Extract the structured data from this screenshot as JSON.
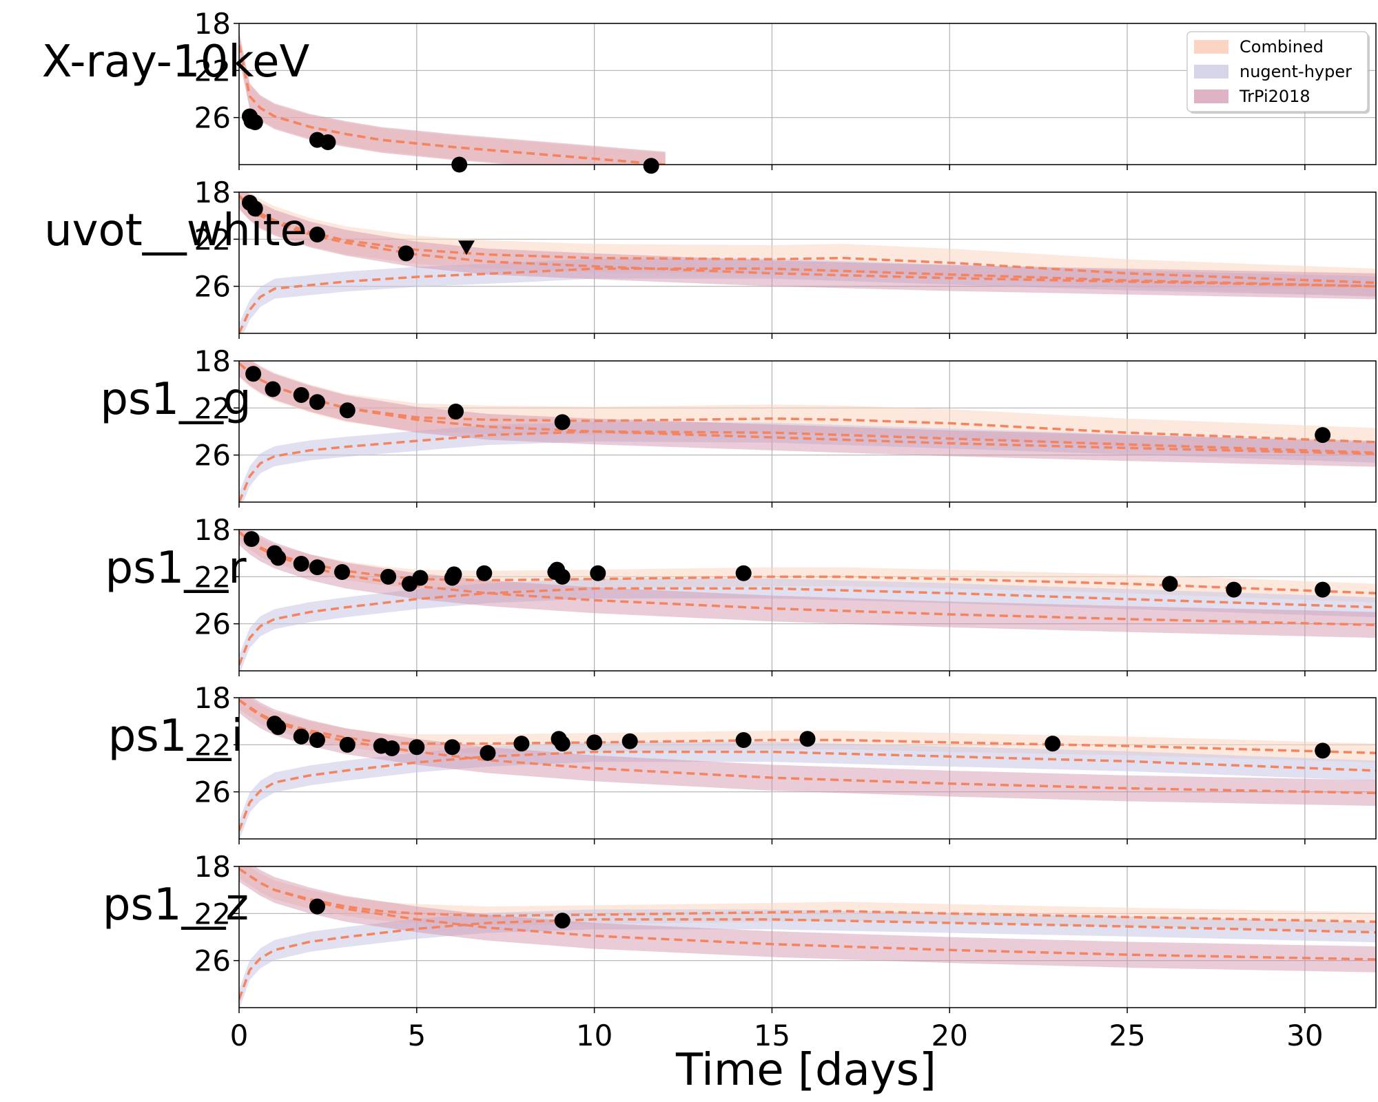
{
  "figure": {
    "xlabel": "Time [days]",
    "xlim": [
      0,
      32
    ],
    "xticks": [
      0,
      5,
      10,
      15,
      20,
      25,
      30
    ],
    "xtick_labels": [
      "0",
      "5",
      "10",
      "15",
      "20",
      "25",
      "30"
    ],
    "grid": true
  },
  "legend": {
    "placement": "top-right",
    "entries": [
      {
        "label": "Combined",
        "color": "#fcd5c2"
      },
      {
        "label": "nugent-hyper",
        "color": "#d6d5ea"
      },
      {
        "label": "TrPi2018",
        "color": "#deb3c5"
      }
    ]
  },
  "colors": {
    "model_line": "#f4845f",
    "combined_band": "#fcd5c2",
    "nugent_band": "#c9c7e6",
    "trpi_band": "#d08ea9",
    "data_point": "#000000",
    "grid": "#b0b0b0"
  },
  "chart_data": [
    {
      "type": "line",
      "title": "X-ray-10keV",
      "ylabel": "X-ray-10keV",
      "ylim": [
        30,
        18
      ],
      "yticks": [
        18,
        22,
        26
      ],
      "ytick_labels": [
        "18",
        "22",
        "26"
      ],
      "series": [
        {
          "name": "TrPi2018",
          "band": "trpi",
          "x": [
            0,
            0.3,
            0.6,
            1,
            2,
            3,
            4,
            6,
            8,
            10,
            12
          ],
          "y": [
            19.8,
            24.2,
            25.2,
            25.9,
            26.8,
            27.4,
            27.9,
            28.5,
            29.0,
            29.5,
            30.0
          ],
          "width": 2.2
        },
        {
          "name": "Combined",
          "band": "combined",
          "x": [
            0,
            0.3,
            0.6,
            1,
            2,
            3,
            4,
            6,
            8,
            10,
            12
          ],
          "y": [
            19.8,
            24.2,
            25.2,
            25.9,
            26.8,
            27.4,
            27.9,
            28.5,
            29.0,
            29.5,
            30.0
          ],
          "width": 2.0
        }
      ],
      "points": [
        {
          "x": 0.3,
          "y": 25.9
        },
        {
          "x": 0.35,
          "y": 26.3
        },
        {
          "x": 0.45,
          "y": 26.4
        },
        {
          "x": 2.2,
          "y": 27.9
        },
        {
          "x": 2.5,
          "y": 28.1
        },
        {
          "x": 6.2,
          "y": 30.0
        },
        {
          "x": 11.6,
          "y": 30.1
        }
      ],
      "upper_limits": []
    },
    {
      "type": "line",
      "title": "uvot__white",
      "ylabel": "uvot__white",
      "ylim": [
        30,
        18
      ],
      "yticks": [
        18,
        22,
        26
      ],
      "ytick_labels": [
        "18",
        "22",
        "26"
      ],
      "series": [
        {
          "name": "nugent-hyper",
          "band": "nugent",
          "x": [
            0,
            0.3,
            0.6,
            1,
            2,
            3,
            5,
            8,
            10,
            15,
            20,
            25,
            32
          ],
          "y": [
            30,
            28.0,
            26.9,
            26.2,
            25.9,
            25.6,
            25.2,
            24.8,
            24.5,
            24.5,
            25.0,
            25.5,
            26.0
          ],
          "width": 1.7
        },
        {
          "name": "TrPi2018",
          "band": "trpi",
          "x": [
            0,
            0.3,
            0.6,
            1,
            2,
            3,
            5,
            7,
            10,
            15,
            20,
            25,
            32
          ],
          "y": [
            18.3,
            19.3,
            20.0,
            20.6,
            21.6,
            22.3,
            23.3,
            23.9,
            24.3,
            24.9,
            25.3,
            25.6,
            26.0
          ],
          "width": 2.2
        },
        {
          "name": "Combined",
          "band": "combined",
          "x": [
            0,
            0.3,
            0.6,
            1,
            2,
            3,
            5,
            7,
            10,
            15,
            17,
            20,
            25,
            32
          ],
          "y": [
            18.3,
            19.2,
            19.8,
            20.4,
            21.4,
            22.1,
            22.9,
            23.3,
            23.6,
            23.7,
            23.6,
            24.0,
            24.9,
            25.7
          ],
          "width": 2.4
        }
      ],
      "points": [
        {
          "x": 0.3,
          "y": 18.9
        },
        {
          "x": 0.45,
          "y": 19.4
        },
        {
          "x": 2.2,
          "y": 21.6
        },
        {
          "x": 4.7,
          "y": 23.2,
          "err": 0.9
        }
      ],
      "upper_limits": [
        {
          "x": 6.4,
          "y": 22.7
        }
      ]
    },
    {
      "type": "line",
      "title": "ps1__g",
      "ylabel": "ps1__g",
      "ylim": [
        30,
        18
      ],
      "yticks": [
        18,
        22,
        26
      ],
      "ytick_labels": [
        "18",
        "22",
        "26"
      ],
      "series": [
        {
          "name": "nugent-hyper",
          "band": "nugent",
          "x": [
            0,
            0.3,
            0.6,
            1,
            2,
            3,
            5,
            7,
            10,
            15,
            20,
            25,
            32
          ],
          "y": [
            30,
            27.8,
            26.7,
            26.1,
            25.6,
            25.3,
            24.8,
            24.3,
            24.0,
            24.1,
            24.6,
            25.1,
            25.8
          ],
          "width": 1.7
        },
        {
          "name": "TrPi2018",
          "band": "trpi",
          "x": [
            0,
            0.3,
            0.6,
            1,
            2,
            3,
            5,
            7,
            10,
            15,
            20,
            25,
            32
          ],
          "y": [
            18.2,
            19.0,
            19.6,
            20.2,
            21.2,
            22.0,
            23.0,
            23.6,
            24.0,
            24.5,
            25.0,
            25.4,
            25.9
          ],
          "width": 2.2
        },
        {
          "name": "Combined",
          "band": "combined",
          "x": [
            0,
            0.3,
            0.6,
            1,
            2,
            3,
            5,
            7,
            10,
            15,
            17,
            20,
            25,
            32
          ],
          "y": [
            18.2,
            19.0,
            19.6,
            20.2,
            21.2,
            22.0,
            22.8,
            23.0,
            23.1,
            22.9,
            23.0,
            23.3,
            24.1,
            24.9
          ],
          "width": 2.4
        }
      ],
      "points": [
        {
          "x": 0.4,
          "y": 19.1
        },
        {
          "x": 0.95,
          "y": 20.4
        },
        {
          "x": 1.75,
          "y": 20.9
        },
        {
          "x": 2.2,
          "y": 21.5
        },
        {
          "x": 3.05,
          "y": 22.2
        },
        {
          "x": 6.1,
          "y": 22.3
        },
        {
          "x": 9.1,
          "y": 23.2
        },
        {
          "x": 30.5,
          "y": 24.3
        }
      ],
      "upper_limits": []
    },
    {
      "type": "line",
      "title": "ps1__r",
      "ylabel": "ps1__r",
      "ylim": [
        30,
        18
      ],
      "yticks": [
        18,
        22,
        26
      ],
      "ytick_labels": [
        "18",
        "22",
        "26"
      ],
      "series": [
        {
          "name": "nugent-hyper",
          "band": "nugent",
          "x": [
            0,
            0.3,
            0.6,
            1,
            2,
            3,
            5,
            7,
            10,
            15,
            20,
            25,
            32
          ],
          "y": [
            29.5,
            27.2,
            26.2,
            25.6,
            25.0,
            24.6,
            23.9,
            23.4,
            23.0,
            23.0,
            23.4,
            23.9,
            24.6
          ],
          "width": 1.7
        },
        {
          "name": "TrPi2018",
          "band": "trpi",
          "x": [
            0,
            0.3,
            0.6,
            1,
            2,
            3,
            5,
            7,
            10,
            15,
            20,
            25,
            32
          ],
          "y": [
            18.2,
            19.0,
            19.6,
            20.2,
            21.2,
            21.9,
            22.8,
            23.4,
            24.0,
            24.7,
            25.2,
            25.6,
            26.1
          ],
          "width": 2.2
        },
        {
          "name": "Combined",
          "band": "combined",
          "x": [
            0,
            0.3,
            0.6,
            1,
            2,
            3,
            4,
            5,
            7,
            10,
            15,
            17,
            20,
            25,
            32
          ],
          "y": [
            18.2,
            18.9,
            19.5,
            20.1,
            20.9,
            21.5,
            21.9,
            22.2,
            22.3,
            22.2,
            22.0,
            22.0,
            22.2,
            22.6,
            23.4
          ],
          "width": 1.6
        }
      ],
      "points": [
        {
          "x": 0.35,
          "y": 18.8
        },
        {
          "x": 1.0,
          "y": 20.0
        },
        {
          "x": 1.1,
          "y": 20.4
        },
        {
          "x": 1.75,
          "y": 20.9
        },
        {
          "x": 2.2,
          "y": 21.2
        },
        {
          "x": 2.9,
          "y": 21.6
        },
        {
          "x": 4.2,
          "y": 22.0
        },
        {
          "x": 4.8,
          "y": 22.6
        },
        {
          "x": 5.1,
          "y": 22.1
        },
        {
          "x": 6.0,
          "y": 22.1
        },
        {
          "x": 6.05,
          "y": 21.8
        },
        {
          "x": 6.9,
          "y": 21.7
        },
        {
          "x": 8.95,
          "y": 21.4
        },
        {
          "x": 8.9,
          "y": 21.6
        },
        {
          "x": 9.1,
          "y": 22.0
        },
        {
          "x": 10.1,
          "y": 21.7
        },
        {
          "x": 14.2,
          "y": 21.7
        },
        {
          "x": 26.2,
          "y": 22.6
        },
        {
          "x": 28.0,
          "y": 23.1
        },
        {
          "x": 30.5,
          "y": 23.1
        }
      ],
      "upper_limits": []
    },
    {
      "type": "line",
      "title": "ps1__i",
      "ylabel": "ps1__i",
      "ylim": [
        30,
        18
      ],
      "yticks": [
        18,
        22,
        26
      ],
      "ytick_labels": [
        "18",
        "22",
        "26"
      ],
      "series": [
        {
          "name": "nugent-hyper",
          "band": "nugent",
          "x": [
            0,
            0.3,
            0.6,
            1,
            2,
            3,
            5,
            7,
            10,
            15,
            20,
            25,
            32
          ],
          "y": [
            29.3,
            26.9,
            25.9,
            25.2,
            24.6,
            24.2,
            23.5,
            23.0,
            22.6,
            22.6,
            23.0,
            23.4,
            24.2
          ],
          "width": 1.7
        },
        {
          "name": "TrPi2018",
          "band": "trpi",
          "x": [
            0,
            0.3,
            0.6,
            1,
            2,
            3,
            5,
            7,
            10,
            15,
            20,
            25,
            32
          ],
          "y": [
            18.2,
            18.9,
            19.5,
            20.1,
            21.0,
            21.7,
            22.6,
            23.3,
            24.0,
            24.8,
            25.3,
            25.7,
            26.1
          ],
          "width": 2.2
        },
        {
          "name": "Combined",
          "band": "combined",
          "x": [
            0,
            0.3,
            0.6,
            1,
            2,
            3,
            4,
            5,
            7,
            10,
            15,
            17,
            20,
            25,
            32
          ],
          "y": [
            18.2,
            18.8,
            19.4,
            20.0,
            20.8,
            21.4,
            21.8,
            21.9,
            21.9,
            21.8,
            21.6,
            21.6,
            21.8,
            22.1,
            22.7
          ],
          "width": 1.6
        }
      ],
      "points": [
        {
          "x": 1.0,
          "y": 20.2
        },
        {
          "x": 1.1,
          "y": 20.5
        },
        {
          "x": 1.75,
          "y": 21.3
        },
        {
          "x": 2.2,
          "y": 21.6
        },
        {
          "x": 3.05,
          "y": 22.0
        },
        {
          "x": 4.0,
          "y": 22.1
        },
        {
          "x": 4.3,
          "y": 22.3
        },
        {
          "x": 5.0,
          "y": 22.2
        },
        {
          "x": 6.0,
          "y": 22.2
        },
        {
          "x": 7.0,
          "y": 22.7
        },
        {
          "x": 7.95,
          "y": 21.9
        },
        {
          "x": 9.0,
          "y": 21.5
        },
        {
          "x": 9.1,
          "y": 21.9
        },
        {
          "x": 10.0,
          "y": 21.8
        },
        {
          "x": 11.0,
          "y": 21.7
        },
        {
          "x": 14.2,
          "y": 21.6
        },
        {
          "x": 16.0,
          "y": 21.5
        },
        {
          "x": 22.9,
          "y": 21.9
        },
        {
          "x": 30.5,
          "y": 22.5
        }
      ],
      "upper_limits": []
    },
    {
      "type": "line",
      "title": "ps1__z",
      "ylabel": "ps1__z",
      "ylim": [
        30,
        18
      ],
      "yticks": [
        18,
        22,
        26
      ],
      "ytick_labels": [
        "18",
        "22",
        "26"
      ],
      "series": [
        {
          "name": "nugent-hyper",
          "band": "nugent",
          "x": [
            0,
            0.3,
            0.6,
            1,
            2,
            3,
            5,
            7,
            10,
            15,
            20,
            25,
            32
          ],
          "y": [
            29.3,
            26.8,
            25.8,
            25.1,
            24.4,
            24.0,
            23.3,
            22.8,
            22.5,
            22.5,
            22.8,
            23.1,
            23.6
          ],
          "width": 1.7
        },
        {
          "name": "TrPi2018",
          "band": "trpi",
          "x": [
            0,
            0.3,
            0.6,
            1,
            2,
            3,
            5,
            7,
            10,
            15,
            20,
            25,
            32
          ],
          "y": [
            18.2,
            18.8,
            19.4,
            20.0,
            20.9,
            21.6,
            22.5,
            23.2,
            23.9,
            24.6,
            25.1,
            25.5,
            25.9
          ],
          "width": 2.2
        },
        {
          "name": "Combined",
          "band": "combined",
          "x": [
            0,
            0.3,
            0.6,
            1,
            2,
            3,
            4,
            5,
            7,
            10,
            15,
            17,
            20,
            25,
            32
          ],
          "y": [
            18.2,
            18.8,
            19.4,
            20.0,
            20.8,
            21.4,
            21.8,
            22.0,
            22.2,
            22.1,
            21.9,
            21.8,
            22.0,
            22.3,
            22.7
          ],
          "width": 1.6
        }
      ],
      "points": [
        {
          "x": 2.2,
          "y": 21.4
        },
        {
          "x": 9.1,
          "y": 22.6
        }
      ],
      "upper_limits": []
    }
  ]
}
